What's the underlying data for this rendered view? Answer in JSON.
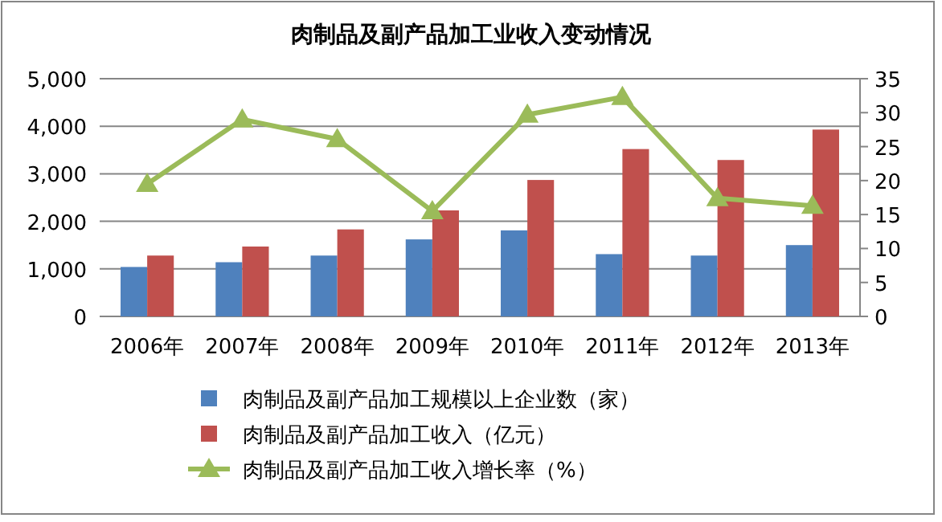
{
  "chart_data": {
    "type": "bar",
    "title": "肉制品及副产品加工业收入变动情况",
    "categories": [
      "2006年",
      "2007年",
      "2008年",
      "2009年",
      "2010年",
      "2011年",
      "2012年",
      "2013年"
    ],
    "series": [
      {
        "name": "肉制品及副产品加工规模以上企业数（家）",
        "color": "#4f81bd",
        "values": [
          1040,
          1140,
          1280,
          1620,
          1810,
          1310,
          1280,
          1500
        ]
      },
      {
        "name": "肉制品及副产品加工收入（亿元）",
        "color": "#c0504d",
        "values": [
          1280,
          1470,
          1830,
          2230,
          2870,
          3520,
          3290,
          3930
        ]
      },
      {
        "name": "肉制品及副产品加工收入增长率（%）",
        "color": "#9bbb59",
        "type": "line",
        "axis": "y2",
        "marker": "triangle",
        "values": [
          19.5,
          29.0,
          26.1,
          15.5,
          29.7,
          32.3,
          17.4,
          16.3
        ]
      }
    ],
    "ylim": [
      0,
      5000
    ],
    "yticks": [
      {
        "value": 0,
        "label": "0"
      },
      {
        "value": 1000,
        "label": "1,000"
      },
      {
        "value": 2000,
        "label": "2,000"
      },
      {
        "value": 3000,
        "label": "3,000"
      },
      {
        "value": 4000,
        "label": "4,000"
      },
      {
        "value": 5000,
        "label": "5,000"
      }
    ],
    "y2lim": [
      0,
      35
    ],
    "y2ticks": [
      0,
      5,
      10,
      15,
      20,
      25,
      30,
      35
    ],
    "grid": "y",
    "legend": "bottom"
  }
}
